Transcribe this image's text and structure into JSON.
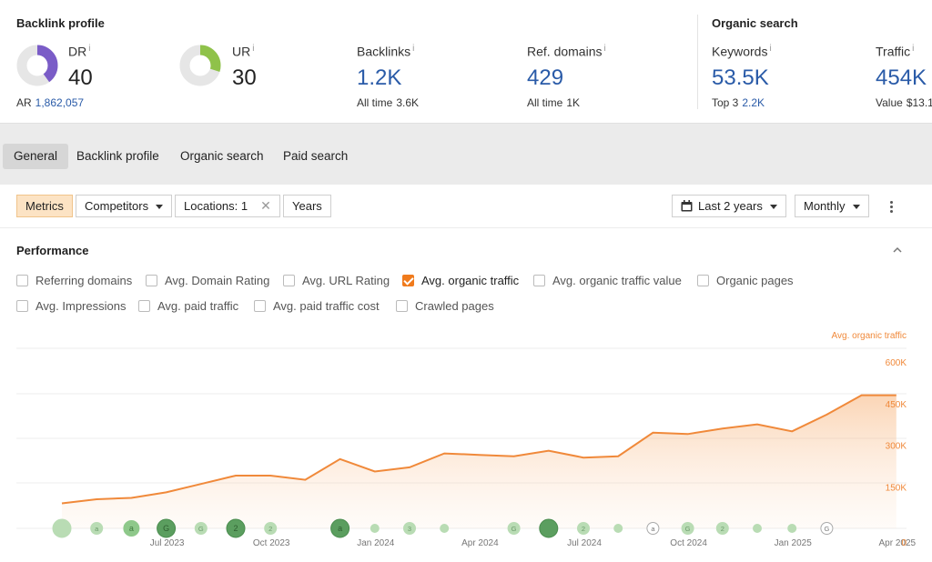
{
  "backlink_profile": {
    "title": "Backlink profile",
    "dr": {
      "label": "DR",
      "info": "i",
      "value": "40",
      "fill": 0.4,
      "color": "#7a5cc7"
    },
    "ur": {
      "label": "UR",
      "info": "i",
      "value": "30",
      "fill": 0.3,
      "color": "#8fc24a"
    },
    "ar": {
      "label": "AR",
      "value": "1,862,057"
    },
    "backlinks": {
      "label": "Backlinks",
      "info": "i",
      "value": "1.2K",
      "sub_label": "All time",
      "sub_value": "3.6K"
    },
    "ref_domains": {
      "label": "Ref. domains",
      "info": "i",
      "value": "429",
      "sub_label": "All time",
      "sub_value": "1K"
    }
  },
  "organic_search": {
    "title": "Organic search",
    "keywords": {
      "label": "Keywords",
      "info": "i",
      "value": "53.5K",
      "sub_label": "Top 3",
      "sub_value": "2.2K"
    },
    "traffic": {
      "label": "Traffic",
      "info": "i",
      "value": "454K",
      "sub_label": "Value",
      "sub_value": "$13.1"
    }
  },
  "tabs": [
    {
      "label": "General",
      "active": true
    },
    {
      "label": "Backlink profile",
      "active": false
    },
    {
      "label": "Organic search",
      "active": false
    },
    {
      "label": "Paid search",
      "active": false
    }
  ],
  "toolbar": {
    "metrics": "Metrics",
    "competitors": "Competitors",
    "locations": "Locations: 1",
    "years": "Years",
    "range": "Last 2 years",
    "interval": "Monthly"
  },
  "performance": {
    "title": "Performance",
    "checkboxes": [
      {
        "label": "Referring domains",
        "checked": false
      },
      {
        "label": "Avg. Domain Rating",
        "checked": false
      },
      {
        "label": "Avg. URL Rating",
        "checked": false
      },
      {
        "label": "Avg. organic traffic",
        "checked": true
      },
      {
        "label": "Avg. organic traffic value",
        "checked": false
      },
      {
        "label": "Organic pages",
        "checked": false
      },
      {
        "label": "Avg. Impressions",
        "checked": false
      },
      {
        "label": "Avg. paid traffic",
        "checked": false
      },
      {
        "label": "Avg. paid traffic cost",
        "checked": false
      },
      {
        "label": "Crawled pages",
        "checked": false
      }
    ]
  },
  "colors": {
    "accent": "#f07b1d",
    "link_blue": "#2a5ba8",
    "event_green": "#5fa85f"
  },
  "chart_data": {
    "type": "area",
    "series": [
      {
        "name": "Avg. organic traffic",
        "x": [
          "2023-04",
          "2023-05",
          "2023-06",
          "2023-07",
          "2023-08",
          "2023-09",
          "2023-10",
          "2023-11",
          "2023-12",
          "2024-01",
          "2024-02",
          "2024-03",
          "2024-04",
          "2024-05",
          "2024-06",
          "2024-07",
          "2024-08",
          "2024-09",
          "2024-10",
          "2024-11",
          "2024-12",
          "2025-01",
          "2025-02",
          "2025-03",
          "2025-04"
        ],
        "values": [
          90000,
          105000,
          110000,
          130000,
          160000,
          190000,
          190000,
          175000,
          250000,
          205000,
          220000,
          270000,
          265000,
          260000,
          280000,
          255000,
          260000,
          345000,
          340000,
          360000,
          375000,
          350000,
          410000,
          480000,
          480000
        ]
      }
    ],
    "x_ticks": [
      "Jul 2023",
      "Oct 2023",
      "Jan 2024",
      "Apr 2024",
      "Jul 2024",
      "Oct 2024",
      "Jan 2025",
      "Apr 2025"
    ],
    "y_ticks": [
      "600K",
      "450K",
      "300K",
      "150K",
      "0"
    ],
    "y_values": [
      600000,
      450000,
      300000,
      150000,
      0
    ],
    "ylim": [
      0,
      600000
    ],
    "grid": true,
    "legend": "top-right",
    "events": [
      {
        "month": "2023-04",
        "label": "",
        "size": "large",
        "shade": "light"
      },
      {
        "month": "2023-05",
        "label": "a",
        "size": "small",
        "shade": "light"
      },
      {
        "month": "2023-06",
        "label": "a",
        "size": "medium",
        "shade": "mid"
      },
      {
        "month": "2023-07",
        "label": "G",
        "size": "large",
        "shade": "dark"
      },
      {
        "month": "2023-08",
        "label": "G",
        "size": "small",
        "shade": "light"
      },
      {
        "month": "2023-09",
        "label": "2",
        "size": "large",
        "shade": "dark"
      },
      {
        "month": "2023-10",
        "label": "2",
        "size": "small",
        "shade": "light"
      },
      {
        "month": "2023-12",
        "label": "a",
        "size": "large",
        "shade": "dark"
      },
      {
        "month": "2024-01",
        "label": "",
        "size": "tiny",
        "shade": "light"
      },
      {
        "month": "2024-02",
        "label": "3",
        "size": "small",
        "shade": "light"
      },
      {
        "month": "2024-03",
        "label": "",
        "size": "tiny",
        "shade": "light"
      },
      {
        "month": "2024-05",
        "label": "G",
        "size": "small",
        "shade": "light"
      },
      {
        "month": "2024-06",
        "label": "",
        "size": "large",
        "shade": "dark"
      },
      {
        "month": "2024-07",
        "label": "2",
        "size": "small",
        "shade": "light"
      },
      {
        "month": "2024-08",
        "label": "",
        "size": "tiny",
        "shade": "light"
      },
      {
        "month": "2024-09",
        "label": "a",
        "size": "small",
        "shade": "outline"
      },
      {
        "month": "2024-10",
        "label": "G",
        "size": "small",
        "shade": "light"
      },
      {
        "month": "2024-11",
        "label": "2",
        "size": "small",
        "shade": "light"
      },
      {
        "month": "2024-12",
        "label": "",
        "size": "tiny",
        "shade": "light"
      },
      {
        "month": "2025-01",
        "label": "",
        "size": "tiny",
        "shade": "light"
      },
      {
        "month": "2025-02",
        "label": "G",
        "size": "small",
        "shade": "outline"
      }
    ]
  }
}
